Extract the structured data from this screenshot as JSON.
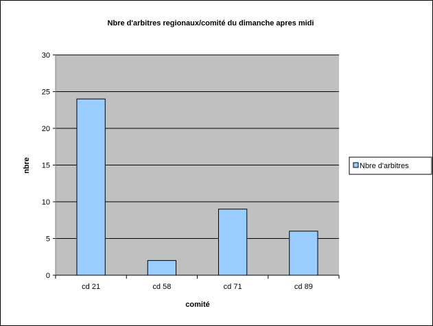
{
  "chart_data": {
    "type": "bar",
    "title": "Nbre d'arbitres regionaux/comité du dimanche apres midi",
    "xlabel": "comité",
    "ylabel": "nbre",
    "categories": [
      "cd 21",
      "cd 58",
      "cd 71",
      "cd 89"
    ],
    "series": [
      {
        "name": "Nbre d'arbitres",
        "values": [
          24,
          2,
          9,
          6
        ]
      }
    ],
    "ylim": [
      0,
      30
    ],
    "yticks": [
      0,
      5,
      10,
      15,
      20,
      25,
      30
    ],
    "grid": true,
    "legend": "right",
    "colors": {
      "plot_background": "#c0c0c0",
      "bar_fill": "#99ccff",
      "bar_stroke": "#000000",
      "gridline": "#000000"
    }
  }
}
